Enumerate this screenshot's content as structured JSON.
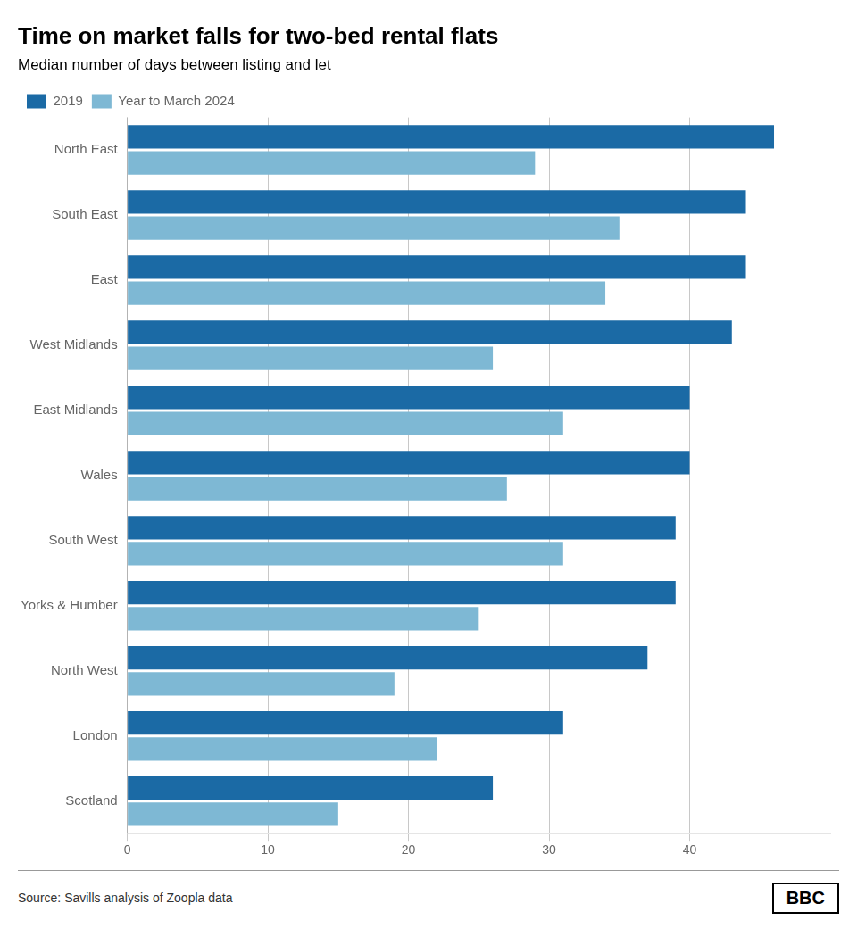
{
  "chart_data": {
    "type": "bar",
    "orientation": "horizontal",
    "title": "Time on market falls for two-bed rental flats",
    "subtitle": "Median number of days between listing and let",
    "source": "Source: Savills analysis of Zoopla data",
    "annotations": [
      "BBC"
    ],
    "categories": [
      "North East",
      "South East",
      "East",
      "West Midlands",
      "East Midlands",
      "Wales",
      "South West",
      "Yorks & Humber",
      "North West",
      "London",
      "Scotland"
    ],
    "series": [
      {
        "name": "2019",
        "color": "#1b6aa5",
        "values": [
          46,
          44,
          44,
          43,
          40,
          40,
          39,
          39,
          37,
          31,
          26
        ]
      },
      {
        "name": "Year to March 2024",
        "color": "#7eb8d4",
        "values": [
          29,
          35,
          34,
          26,
          31,
          27,
          31,
          25,
          19,
          22,
          15
        ]
      }
    ],
    "xlim": [
      0,
      50
    ],
    "xticks": [
      0,
      10,
      20,
      30,
      40
    ],
    "grid": true,
    "legend": "upper left"
  }
}
